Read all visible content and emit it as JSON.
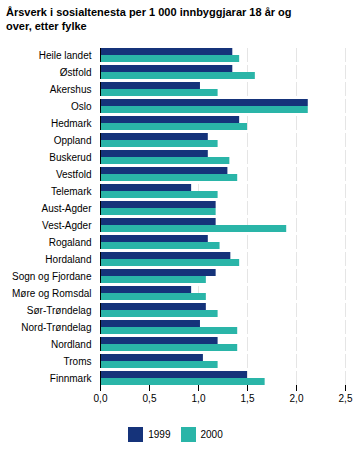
{
  "chart_data": {
    "type": "bar",
    "orientation": "horizontal",
    "title": "Årsverk i sosialtenesta per 1 000 innbyggjarar 18 år og\nover, etter fylke",
    "categories": [
      "Heile landet",
      "Østfold",
      "Akershus",
      "Oslo",
      "Hedmark",
      "Oppland",
      "Buskerud",
      "Vestfold",
      "Telemark",
      "Aust-Agder",
      "Vest-Agder",
      "Rogaland",
      "Hordaland",
      "Sogn og Fjordane",
      "Møre og Romsdal",
      "Sør-Trøndelag",
      "Nord-Trøndelag",
      "Nordland",
      "Troms",
      "Finnmark"
    ],
    "series": [
      {
        "name": "1999",
        "color": "#15337a",
        "values": [
          1.35,
          1.35,
          1.02,
          2.12,
          1.42,
          1.1,
          1.1,
          1.3,
          0.93,
          1.18,
          1.18,
          1.1,
          1.33,
          1.18,
          0.93,
          1.08,
          1.02,
          1.2,
          1.05,
          1.5
        ]
      },
      {
        "name": "2000",
        "color": "#2ab5a8",
        "values": [
          1.42,
          1.58,
          1.2,
          2.12,
          1.5,
          1.2,
          1.32,
          1.4,
          1.2,
          1.18,
          1.9,
          1.22,
          1.42,
          1.08,
          1.08,
          1.2,
          1.4,
          1.4,
          1.2,
          1.68
        ]
      }
    ],
    "xlim": [
      0,
      2.5
    ],
    "xticks": [
      {
        "value": 0.0,
        "label": "0,0"
      },
      {
        "value": 0.5,
        "label": "0,5"
      },
      {
        "value": 1.0,
        "label": "1,0"
      },
      {
        "value": 1.5,
        "label": "1,5"
      },
      {
        "value": 2.0,
        "label": "2,0"
      },
      {
        "value": 2.5,
        "label": "2,5"
      }
    ],
    "grid": true,
    "legend": "bottom"
  }
}
